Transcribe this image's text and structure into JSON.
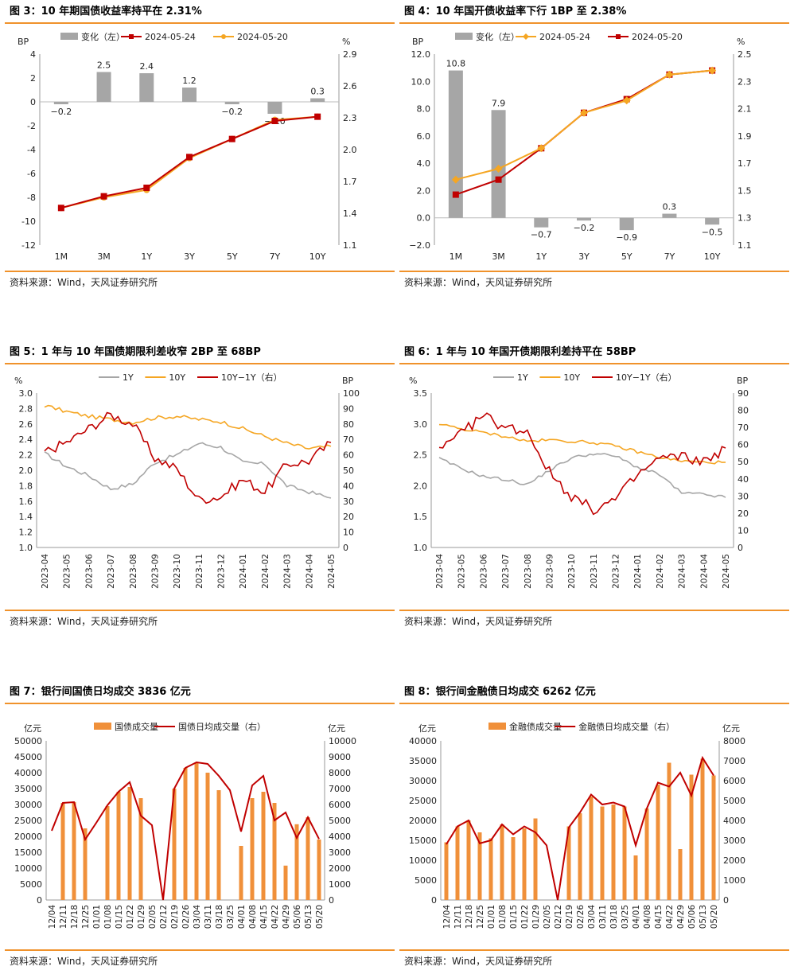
{
  "sources": {
    "c3": "资料来源：Wind，天风证券研究所",
    "c4": "资料来源：Wind，天风证券研究所",
    "c5": "资料来源：Wind，天风证券研究所",
    "c6": "资料来源：Wind，天风证券研究所",
    "c7": "资料来源：Wind，天风证券研究所",
    "c8": "资料来源：Wind，天风证券研究所"
  },
  "colors": {
    "accent": "#f0922b",
    "bar_gray": "#a6a6a6",
    "red": "#c00000",
    "orange": "#f5a623",
    "gray_line": "#a6a6a6",
    "bar_orange": "#f0903a"
  },
  "chart_data": [
    {
      "id": "c3",
      "type": "bar+line",
      "title": "图 3：10 年期国债收益率持平在 2.31%",
      "categories": [
        "1M",
        "3M",
        "1Y",
        "3Y",
        "5Y",
        "7Y",
        "10Y"
      ],
      "left_unit": "BP",
      "right_unit": "%",
      "left_ticks": [
        4,
        2,
        0,
        -2,
        -4,
        -6,
        -8,
        -10,
        -12
      ],
      "right_ticks": [
        "2.9",
        "2.6",
        "2.3",
        "2.0",
        "1.7",
        "1.4",
        "1.1"
      ],
      "ylim_left": [
        -12,
        4
      ],
      "ylim_right": [
        1.1,
        2.9
      ],
      "bars": {
        "name": "变化（左）",
        "values": [
          -0.2,
          2.5,
          2.4,
          1.2,
          -0.2,
          -1.0,
          0.3
        ],
        "labels": [
          "−0.2",
          "2.5",
          "2.4",
          "1.2",
          "−0.2",
          "−1.0",
          "0.3"
        ]
      },
      "series": [
        {
          "name": "2024-05-24",
          "values": [
            1.45,
            1.56,
            1.64,
            1.93,
            2.1,
            2.27,
            2.31
          ]
        },
        {
          "name": "2024-05-20",
          "values": [
            1.45,
            1.55,
            1.62,
            1.92,
            2.1,
            2.28,
            2.31
          ]
        }
      ]
    },
    {
      "id": "c4",
      "type": "bar+line",
      "title": "图 4：10 年国开债收益率下行 1BP 至 2.38%",
      "categories": [
        "1M",
        "3M",
        "1Y",
        "3Y",
        "5Y",
        "7Y",
        "10Y"
      ],
      "left_unit": "BP",
      "right_unit": "%",
      "left_ticks": [
        "12.0",
        "10.0",
        "8.0",
        "6.0",
        "4.0",
        "2.0",
        "0.0",
        "−2.0"
      ],
      "right_ticks": [
        "2.5",
        "2.3",
        "2.1",
        "1.9",
        "1.7",
        "1.5",
        "1.3",
        "1.1"
      ],
      "ylim_left": [
        -2,
        12
      ],
      "ylim_right": [
        1.1,
        2.5
      ],
      "bars": {
        "name": "变化（左）",
        "values": [
          10.8,
          7.9,
          -0.7,
          -0.2,
          -0.9,
          0.3,
          -0.5
        ],
        "labels": [
          "10.8",
          "7.9",
          "−0.7",
          "−0.2",
          "−0.9",
          "0.3",
          "−0.5"
        ]
      },
      "series": [
        {
          "name": "2024-05-24",
          "values": [
            1.58,
            1.66,
            1.81,
            2.07,
            2.16,
            2.35,
            2.38
          ]
        },
        {
          "name": "2024-05-20",
          "values": [
            1.47,
            1.58,
            1.81,
            2.07,
            2.17,
            2.35,
            2.38
          ]
        }
      ]
    },
    {
      "id": "c5",
      "type": "line",
      "title": "图 5：1 年与 10 年国债期限利差收窄 2BP 至 68BP",
      "left_unit": "%",
      "right_unit": "BP",
      "x": [
        "2023-04",
        "2023-05",
        "2023-06",
        "2023-07",
        "2023-08",
        "2023-09",
        "2023-10",
        "2023-11",
        "2023-12",
        "2024-01",
        "2024-02",
        "2024-03",
        "2024-04",
        "2024-05"
      ],
      "left_ticks": [
        "3.0",
        "2.8",
        "2.6",
        "2.4",
        "2.2",
        "2.0",
        "1.8",
        "1.6",
        "1.4",
        "1.2",
        "1.0"
      ],
      "right_ticks": [
        "100",
        "90",
        "80",
        "70",
        "60",
        "50",
        "40",
        "30",
        "20",
        "10",
        "0"
      ],
      "ylim_left": [
        1.0,
        3.0
      ],
      "ylim_right": [
        0,
        100
      ],
      "series": [
        {
          "name": "1Y",
          "axis": "left",
          "values": [
            2.22,
            2.05,
            1.93,
            1.76,
            1.82,
            2.1,
            2.2,
            2.35,
            2.3,
            2.1,
            2.08,
            1.8,
            1.72,
            1.64
          ]
        },
        {
          "name": "10Y",
          "axis": "left",
          "values": [
            2.84,
            2.76,
            2.7,
            2.66,
            2.62,
            2.68,
            2.7,
            2.66,
            2.63,
            2.54,
            2.44,
            2.35,
            2.28,
            2.31
          ]
        },
        {
          "name": "10Y−1Y（右）",
          "axis": "right",
          "values": [
            62,
            68,
            77,
            86,
            80,
            58,
            51,
            31,
            33,
            44,
            36,
            54,
            56,
            68
          ]
        }
      ]
    },
    {
      "id": "c6",
      "type": "line",
      "title": "图 6：1 年与 10 年国开债期限利差持平在 58BP",
      "left_unit": "%",
      "right_unit": "BP",
      "x": [
        "2023-04",
        "2023-05",
        "2023-06",
        "2023-07",
        "2023-08",
        "2023-09",
        "2023-10",
        "2023-11",
        "2023-12",
        "2024-01",
        "2024-02",
        "2024-03",
        "2024-04",
        "2024-05"
      ],
      "left_ticks": [
        "3.5",
        "3.0",
        "2.5",
        "2.0",
        "1.5",
        "1.0"
      ],
      "right_ticks": [
        "90",
        "80",
        "70",
        "60",
        "50",
        "40",
        "30",
        "20",
        "10",
        "0"
      ],
      "ylim_left": [
        1.0,
        3.5
      ],
      "ylim_right": [
        0,
        90
      ],
      "series": [
        {
          "name": "1Y",
          "axis": "left",
          "values": [
            2.44,
            2.28,
            2.15,
            2.1,
            2.02,
            2.25,
            2.45,
            2.52,
            2.48,
            2.3,
            2.18,
            1.88,
            1.86,
            1.81
          ]
        },
        {
          "name": "10Y",
          "axis": "left",
          "values": [
            3.0,
            2.92,
            2.86,
            2.8,
            2.72,
            2.74,
            2.72,
            2.7,
            2.64,
            2.55,
            2.46,
            2.4,
            2.38,
            2.38
          ]
        },
        {
          "name": "10Y−1Y（右）",
          "axis": "right",
          "values": [
            56,
            66,
            77,
            70,
            68,
            44,
            30,
            22,
            28,
            42,
            52,
            53,
            50,
            58
          ]
        }
      ]
    },
    {
      "id": "c7",
      "type": "bar+line",
      "title": "图 7：银行间国债日均成交 3836 亿元",
      "left_unit": "亿元",
      "right_unit": "亿元",
      "categories": [
        "12/04",
        "12/11",
        "12/18",
        "12/25",
        "01/01",
        "01/08",
        "01/15",
        "01/22",
        "01/29",
        "02/05",
        "02/12",
        "02/19",
        "02/26",
        "03/04",
        "03/11",
        "03/18",
        "03/25",
        "04/01",
        "04/08",
        "04/15",
        "04/22",
        "04/29",
        "05/06",
        "05/13",
        "05/20"
      ],
      "left_ticks": [
        "50000",
        "45000",
        "40000",
        "35000",
        "30000",
        "25000",
        "20000",
        "15000",
        "10000",
        "5000",
        "0"
      ],
      "right_ticks": [
        "10000",
        "9000",
        "8000",
        "7000",
        "6000",
        "5000",
        "4000",
        "3000",
        "2000",
        "1000",
        "0"
      ],
      "ylim_left": [
        0,
        50000
      ],
      "ylim_right": [
        0,
        10000
      ],
      "bars": {
        "name": "国债成交量",
        "values": [
          0,
          30500,
          30800,
          22500,
          0,
          29500,
          34000,
          35500,
          32000,
          0,
          0,
          35000,
          41500,
          43000,
          40000,
          34500,
          0,
          17000,
          32000,
          34000,
          30500,
          10800,
          23800,
          26000,
          19000
        ]
      },
      "series": [
        {
          "name": "国债日均成交量（右）",
          "values": [
            4350,
            6100,
            6150,
            3800,
            4850,
            5950,
            6800,
            7400,
            5300,
            4700,
            0,
            7000,
            8300,
            8650,
            8550,
            7800,
            6900,
            4300,
            7200,
            7800,
            5000,
            5500,
            3900,
            5200,
            3836
          ]
        }
      ]
    },
    {
      "id": "c8",
      "type": "bar+line",
      "title": "图 8：银行间金融债日均成交 6262 亿元",
      "left_unit": "亿元",
      "right_unit": "亿元",
      "categories": [
        "12/04",
        "12/11",
        "12/18",
        "12/25",
        "01/01",
        "01/08",
        "01/15",
        "01/22",
        "01/29",
        "02/05",
        "02/12",
        "02/19",
        "02/26",
        "03/04",
        "03/11",
        "03/18",
        "03/25",
        "04/01",
        "04/08",
        "04/15",
        "04/22",
        "04/29",
        "05/06",
        "05/13",
        "05/20"
      ],
      "left_ticks": [
        "40000",
        "35000",
        "30000",
        "25000",
        "20000",
        "15000",
        "10000",
        "5000",
        "0"
      ],
      "right_ticks": [
        "8000",
        "7000",
        "6000",
        "5000",
        "4000",
        "3000",
        "2000",
        "1000",
        "0"
      ],
      "ylim_left": [
        0,
        40000
      ],
      "ylim_right": [
        0,
        8000
      ],
      "bars": {
        "name": "金融债成交量",
        "values": [
          14500,
          18500,
          20000,
          17000,
          15500,
          19000,
          15800,
          18000,
          20500,
          0,
          0,
          18500,
          21800,
          26000,
          23500,
          24000,
          23500,
          11200,
          23000,
          29000,
          34500,
          12800,
          31500,
          35500,
          31300
        ]
      },
      "series": [
        {
          "name": "金融债日均成交量（右）",
          "values": [
            2800,
            3700,
            4000,
            2850,
            3000,
            3800,
            3300,
            3700,
            3400,
            2750,
            0,
            3650,
            4400,
            5300,
            4800,
            4900,
            4700,
            2750,
            4600,
            5900,
            5700,
            6400,
            5250,
            7150,
            6262
          ]
        }
      ]
    }
  ]
}
